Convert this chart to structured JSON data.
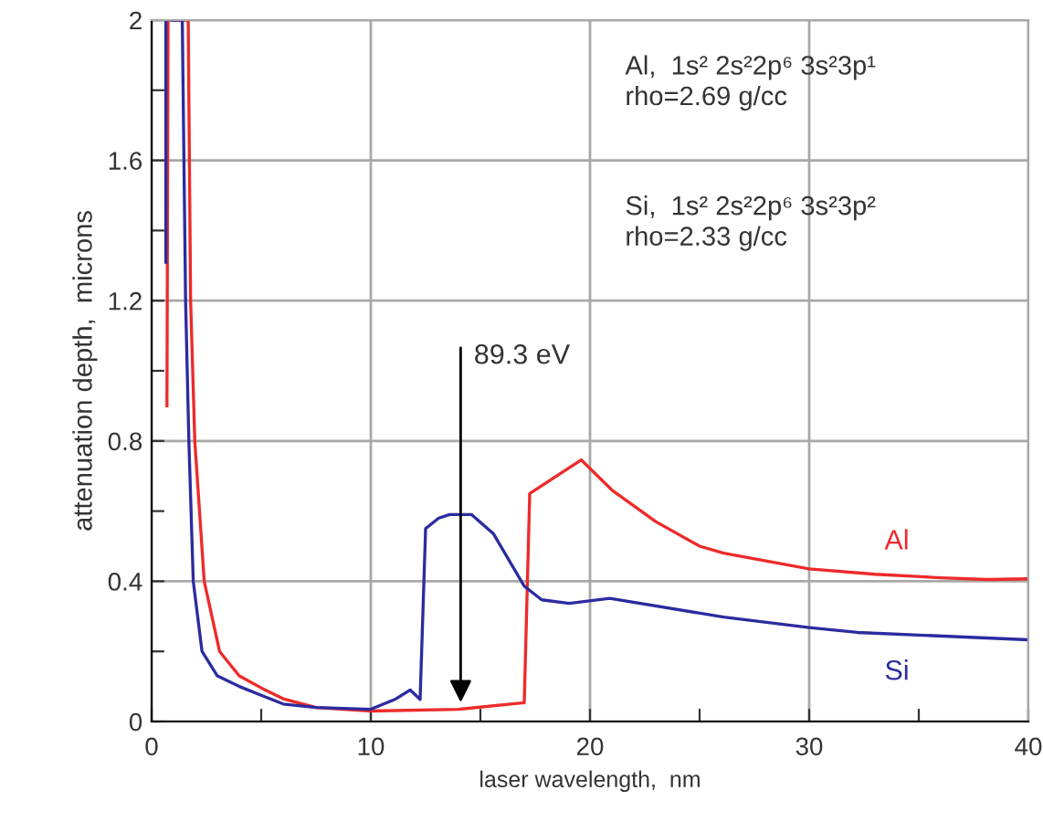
{
  "chart_data": {
    "type": "line",
    "xlabel": "laser wavelength,  nm",
    "ylabel": "attenuation depth,  microns",
    "xlim": [
      0,
      40
    ],
    "ylim": [
      0,
      2
    ],
    "xticks": [
      0,
      {
        "value": 5,
        "label": null
      },
      10,
      {
        "value": 15,
        "label": null
      },
      20,
      {
        "value": 25,
        "label": null
      },
      30,
      {
        "value": 35,
        "label": null
      },
      40
    ],
    "yticks": [
      0,
      {
        "value": 0.2,
        "label": null
      },
      0.4,
      {
        "value": 0.6,
        "label": null
      },
      0.8,
      {
        "value": 1.0,
        "label": null
      },
      1.2,
      {
        "value": 1.4,
        "label": null
      },
      1.6,
      {
        "value": 1.8,
        "label": null
      },
      2
    ],
    "grid": true,
    "series": [
      {
        "name": "Al",
        "color": "#ee2a2a",
        "x": [
          0.7,
          0.75,
          null,
          1.1,
          1.5,
          1.67,
          1.78,
          1.97,
          2.4,
          3.1,
          4.0,
          5.0,
          6.0,
          7.5,
          10,
          14,
          16.9,
          17.0,
          17.25,
          19.6,
          21,
          23,
          25,
          26.1,
          30,
          33,
          36,
          38.1,
          40
        ],
        "values": [
          0.9,
          2,
          null,
          2,
          2,
          2,
          1.2,
          0.8,
          0.4,
          0.2,
          0.13,
          0.096,
          0.065,
          0.04,
          0.03,
          0.035,
          0.053,
          0.053,
          0.65,
          0.746,
          0.66,
          0.57,
          0.5,
          0.48,
          0.435,
          0.42,
          0.41,
          0.405,
          0.407
        ]
      },
      {
        "name": "Si",
        "color": "#2b2ba0",
        "x": [
          0.65,
          0.65,
          null,
          0.9,
          1.4,
          1.55,
          1.7,
          1.9,
          2.3,
          3.0,
          4.0,
          5.0,
          6.0,
          7.5,
          10,
          11.1,
          11.8,
          12.25,
          12.5,
          13.1,
          13.6,
          14.6,
          15.6,
          17.0,
          17.8,
          19.05,
          20.9,
          26.1,
          30,
          32.2,
          40
        ],
        "values": [
          1.31,
          2,
          null,
          2,
          2,
          1.2,
          0.8,
          0.4,
          0.2,
          0.13,
          0.1,
          0.075,
          0.05,
          0.04,
          0.035,
          0.063,
          0.09,
          0.063,
          0.55,
          0.58,
          0.59,
          0.59,
          0.535,
          0.386,
          0.347,
          0.337,
          0.351,
          0.298,
          0.268,
          0.254,
          0.233
        ]
      }
    ],
    "annotations": [
      {
        "text": "89.3 eV",
        "x": 14.1,
        "y": 0.04
      },
      "Al,  1s² 2s²2p⁶ 3s²3p¹\nrho=2.69 g/cc",
      "Si,  1s² 2s²2p⁶ 3s²3p²\nrho=2.33 g/cc"
    ]
  }
}
